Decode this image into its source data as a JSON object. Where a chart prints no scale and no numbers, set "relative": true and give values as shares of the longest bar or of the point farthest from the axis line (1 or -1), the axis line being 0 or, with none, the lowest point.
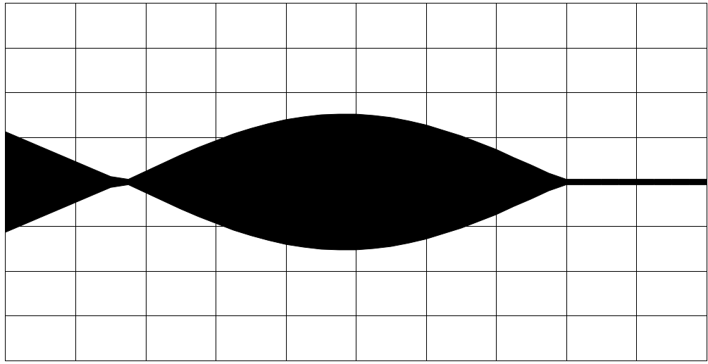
{
  "chart_data": {
    "type": "area",
    "relative": true,
    "grid": true,
    "categories": [
      null,
      null,
      null,
      null,
      null,
      null,
      null,
      null,
      null,
      null,
      null,
      null,
      null,
      null,
      null,
      null,
      null,
      null,
      null,
      null,
      null,
      null,
      null,
      null,
      null,
      null,
      null,
      null,
      null,
      null,
      null,
      null,
      null,
      null,
      null,
      null,
      null,
      null,
      null,
      null,
      null
    ],
    "series": [
      {
        "color": "#000000",
        "values": [
          0.74,
          0.63,
          0.52,
          0.41,
          0.3,
          0.19,
          0.08,
          0.04,
          0.16,
          0.28,
          0.4,
          0.51,
          0.61,
          0.71,
          0.79,
          0.86,
          0.92,
          0.96,
          0.99,
          1.0,
          1.0,
          0.98,
          0.95,
          0.9,
          0.84,
          0.76,
          0.68,
          0.58,
          0.48,
          0.36,
          0.25,
          0.13,
          0.04,
          0.04,
          0.04,
          0.04,
          0.04,
          0.04,
          0.04,
          0.04,
          0.04
        ]
      },
      {
        "color": "#000000",
        "values": [
          -0.74,
          -0.63,
          -0.52,
          -0.41,
          -0.3,
          -0.19,
          -0.08,
          -0.04,
          -0.16,
          -0.28,
          -0.4,
          -0.51,
          -0.61,
          -0.71,
          -0.79,
          -0.86,
          -0.92,
          -0.96,
          -0.99,
          -1.0,
          -1.0,
          -0.98,
          -0.95,
          -0.9,
          -0.84,
          -0.76,
          -0.68,
          -0.58,
          -0.48,
          -0.36,
          -0.25,
          -0.13,
          -0.04,
          -0.04,
          -0.04,
          -0.04,
          -0.04,
          -0.04,
          -0.04,
          -0.04,
          -0.04
        ]
      }
    ]
  }
}
